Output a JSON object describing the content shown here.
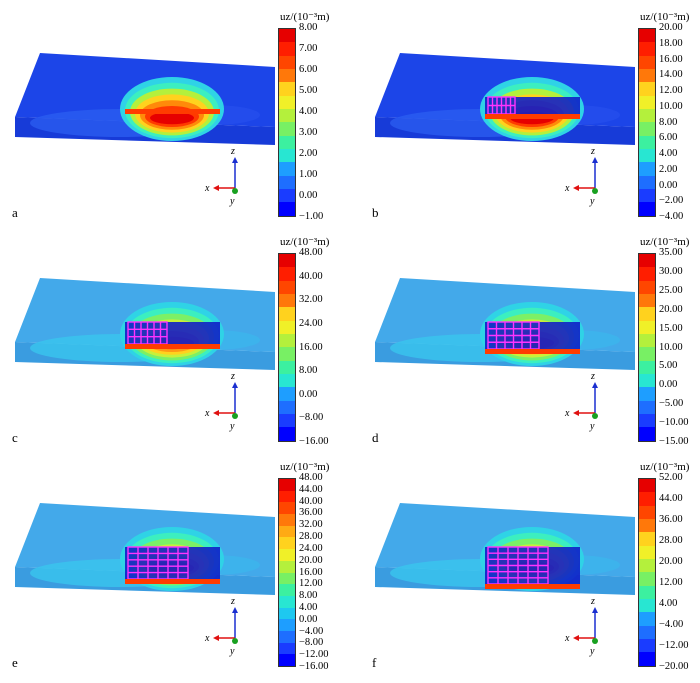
{
  "panels": [
    {
      "label": "a",
      "legend_title": "uz/(10⁻³m)",
      "ticks": [
        "8.00",
        "7.00",
        "6.00",
        "5.00",
        "4.00",
        "3.00",
        "2.00",
        "1.00",
        "0.00",
        "−1.00"
      ],
      "bands": 14,
      "stage": 0
    },
    {
      "label": "b",
      "legend_title": "uz/(10⁻³m)",
      "ticks": [
        "20.00",
        "18.00",
        "16.00",
        "14.00",
        "12.00",
        "10.00",
        "8.00",
        "6.00",
        "4.00",
        "2.00",
        "0.00",
        "−2.00",
        "−4.00"
      ],
      "bands": 14,
      "stage": 1
    },
    {
      "label": "c",
      "legend_title": "uz/(10⁻³m)",
      "ticks": [
        "48.00",
        "40.00",
        "32.00",
        "24.00",
        "16.00",
        "8.00",
        "0.00",
        "−8.00",
        "−16.00"
      ],
      "bands": 14,
      "stage": 2
    },
    {
      "label": "d",
      "legend_title": "uz/(10⁻³m)",
      "ticks": [
        "35.00",
        "30.00",
        "25.00",
        "20.00",
        "15.00",
        "10.00",
        "5.00",
        "0.00",
        "−5.00",
        "−10.00",
        "−15.00"
      ],
      "bands": 14,
      "stage": 3
    },
    {
      "label": "e",
      "legend_title": "uz/(10⁻³m)",
      "ticks": [
        "48.00",
        "44.00",
        "40.00",
        "36.00",
        "32.00",
        "28.00",
        "24.00",
        "20.00",
        "16.00",
        "12.00",
        "8.00",
        "4.00",
        "0.00",
        "−4.00",
        "−8.00",
        "−12.00",
        "−16.00"
      ],
      "bands": 16,
      "stage": 4
    },
    {
      "label": "f",
      "legend_title": "uz/(10⁻³m)",
      "ticks": [
        "52.00",
        "44.00",
        "36.00",
        "28.00",
        "20.00",
        "12.00",
        "4.00",
        "−4.00",
        "−12.00",
        "−20.00"
      ],
      "bands": 14,
      "stage": 5
    }
  ],
  "axes": {
    "x": "x",
    "y": "y",
    "z": "z"
  },
  "colors": {
    "top_deep": "#1c41e6",
    "top_light": "#3fa7e8",
    "grid": "#ff33ff",
    "ramp": [
      "#0000ff",
      "#1a3cff",
      "#1e6eff",
      "#1e9eff",
      "#1ec8f0",
      "#28e6d2",
      "#3cf0a0",
      "#78f064",
      "#b4f03c",
      "#f0f028",
      "#ffd21e",
      "#ffaa14",
      "#ff780a",
      "#ff4600",
      "#ff1e00",
      "#e60000"
    ]
  }
}
